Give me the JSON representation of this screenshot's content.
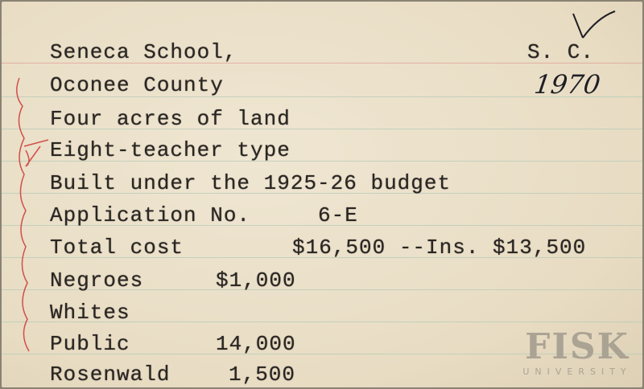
{
  "card": {
    "lines": {
      "school": "Seneca School,",
      "county": "Oconee County",
      "land": "Four acres of land",
      "type": "Eight-teacher type",
      "budget": "Built under the 1925-26 budget",
      "application_label": "Application No.",
      "application_value": "6-E",
      "total_cost_label": "Total cost",
      "total_cost_value": "$16,500 --Ins. $13,500",
      "negroes_label": "Negroes",
      "negroes_value": "$1,000",
      "whites_label": "Whites",
      "public_label": "Public",
      "public_value": "14,000",
      "rosenwald_label": "Rosenwald",
      "rosenwald_value": "1,500"
    },
    "state": "S. C.",
    "handwritten_number": "1970",
    "check_mark": "V"
  },
  "watermark": {
    "name": "FISK",
    "subtitle": "UNIVERSITY"
  },
  "colors": {
    "paper": "#ece2cc",
    "ink": "#2a2622",
    "red_ink": "#d0504a",
    "rule_blue": "#b8ccb8",
    "rule_red": "#e0a49a"
  }
}
